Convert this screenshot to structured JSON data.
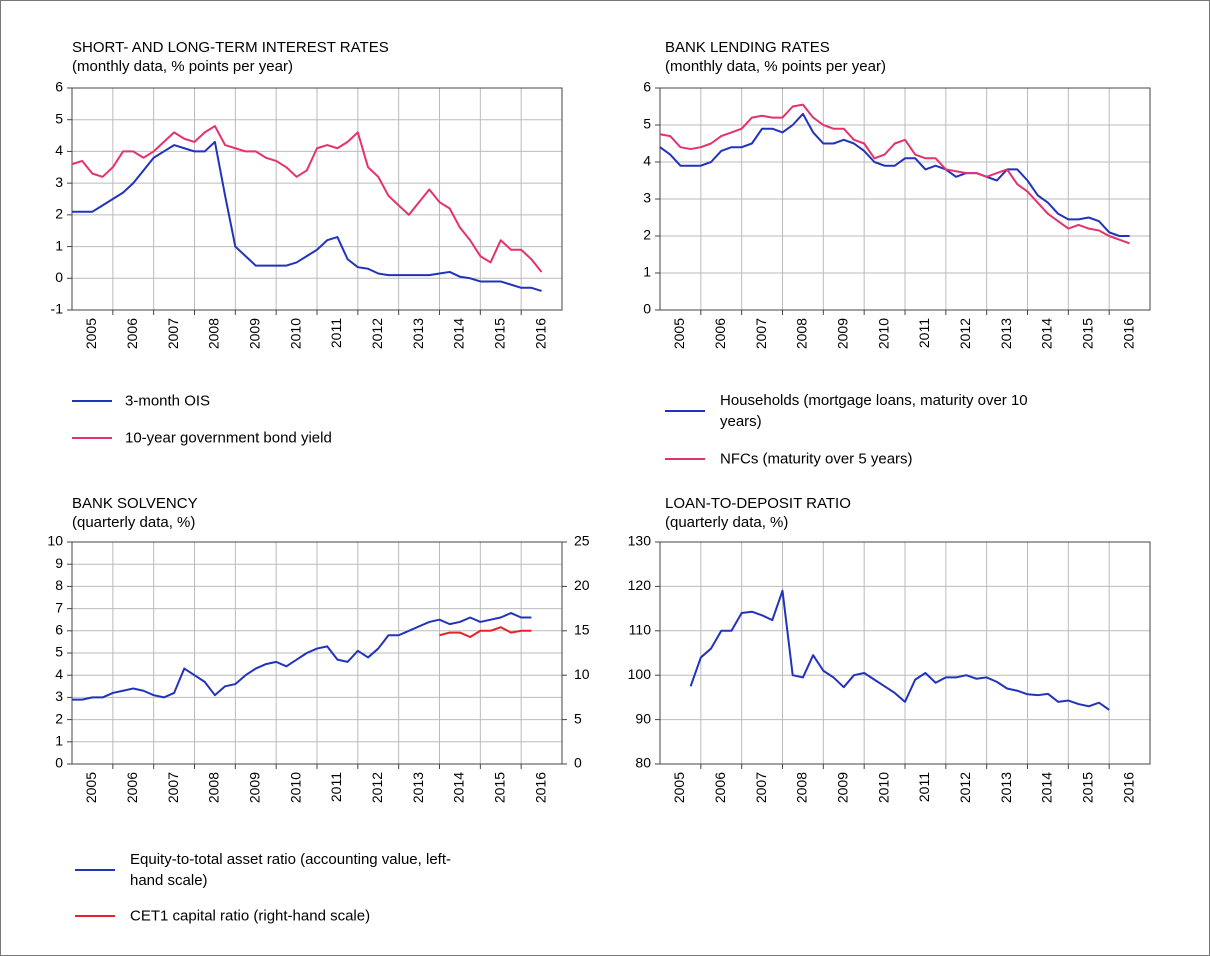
{
  "chart_data": [
    {
      "type": "line",
      "title": "SHORT- AND LONG-TERM INTEREST RATES",
      "subtitle": "(monthly data, % points per year)",
      "x": [
        2005,
        2005.25,
        2005.5,
        2005.75,
        2006,
        2006.25,
        2006.5,
        2006.75,
        2007,
        2007.25,
        2007.5,
        2007.75,
        2008,
        2008.25,
        2008.5,
        2008.75,
        2009,
        2009.25,
        2009.5,
        2009.75,
        2010,
        2010.25,
        2010.5,
        2010.75,
        2011,
        2011.25,
        2011.5,
        2011.75,
        2012,
        2012.25,
        2012.5,
        2012.75,
        2013,
        2013.25,
        2013.5,
        2013.75,
        2014,
        2014.25,
        2014.5,
        2014.75,
        2015,
        2015.25,
        2015.5,
        2015.75,
        2016,
        2016.25,
        2016.5
      ],
      "xlim": [
        2005,
        2017
      ],
      "xticks": [
        2006,
        2007,
        2008,
        2009,
        2010,
        2011,
        2012,
        2013,
        2014,
        2015,
        2016
      ],
      "categories": [
        "2005",
        "2006",
        "2007",
        "2008",
        "2009",
        "2010",
        "2011",
        "2012",
        "2013",
        "2014",
        "2015",
        "2016"
      ],
      "ylim": [
        -1,
        6
      ],
      "yticks": [
        -1,
        0,
        1,
        2,
        3,
        4,
        5,
        6
      ],
      "grid": true,
      "series": [
        {
          "name": "3-month OIS",
          "color": "#2233bb",
          "values": [
            2.1,
            2.1,
            2.1,
            2.3,
            2.5,
            2.7,
            3.0,
            3.4,
            3.8,
            4.0,
            4.2,
            4.1,
            4.0,
            4.0,
            4.3,
            2.6,
            1.0,
            0.7,
            0.4,
            0.4,
            0.4,
            0.4,
            0.5,
            0.7,
            0.9,
            1.2,
            1.3,
            0.6,
            0.35,
            0.3,
            0.15,
            0.1,
            0.1,
            0.1,
            0.1,
            0.1,
            0.15,
            0.2,
            0.05,
            0.0,
            -0.1,
            -0.1,
            -0.1,
            -0.2,
            -0.3,
            -0.3,
            -0.4
          ]
        },
        {
          "name": "10-year government bond yield",
          "color": "#e5316e",
          "values": [
            3.6,
            3.7,
            3.3,
            3.2,
            3.5,
            4.0,
            4.0,
            3.8,
            4.0,
            4.3,
            4.6,
            4.4,
            4.3,
            4.6,
            4.8,
            4.2,
            4.1,
            4.0,
            4.0,
            3.8,
            3.7,
            3.5,
            3.2,
            3.4,
            4.1,
            4.2,
            4.1,
            4.3,
            4.6,
            3.5,
            3.2,
            2.6,
            2.3,
            2.0,
            2.4,
            2.8,
            2.4,
            2.2,
            1.6,
            1.2,
            0.7,
            0.5,
            1.2,
            0.9,
            0.9,
            0.6,
            0.2
          ]
        }
      ]
    },
    {
      "type": "line",
      "title": "BANK LENDING RATES",
      "subtitle": "(monthly data, % points per year)",
      "x": [
        2005,
        2005.25,
        2005.5,
        2005.75,
        2006,
        2006.25,
        2006.5,
        2006.75,
        2007,
        2007.25,
        2007.5,
        2007.75,
        2008,
        2008.25,
        2008.5,
        2008.75,
        2009,
        2009.25,
        2009.5,
        2009.75,
        2010,
        2010.25,
        2010.5,
        2010.75,
        2011,
        2011.25,
        2011.5,
        2011.75,
        2012,
        2012.25,
        2012.5,
        2012.75,
        2013,
        2013.25,
        2013.5,
        2013.75,
        2014,
        2014.25,
        2014.5,
        2014.75,
        2015,
        2015.25,
        2015.5,
        2015.75,
        2016,
        2016.25,
        2016.5
      ],
      "xlim": [
        2005,
        2017
      ],
      "xticks": [
        2006,
        2007,
        2008,
        2009,
        2010,
        2011,
        2012,
        2013,
        2014,
        2015,
        2016
      ],
      "categories": [
        "2005",
        "2006",
        "2007",
        "2008",
        "2009",
        "2010",
        "2011",
        "2012",
        "2013",
        "2014",
        "2015",
        "2016"
      ],
      "ylim": [
        0,
        6
      ],
      "yticks": [
        0,
        1,
        2,
        3,
        4,
        5,
        6
      ],
      "grid": true,
      "series": [
        {
          "name": "Households (mortgage loans, maturity over 10 years)",
          "color": "#2233bb",
          "values": [
            4.4,
            4.2,
            3.9,
            3.9,
            3.9,
            4.0,
            4.3,
            4.4,
            4.4,
            4.5,
            4.9,
            4.9,
            4.8,
            5.0,
            5.3,
            4.8,
            4.5,
            4.5,
            4.6,
            4.5,
            4.3,
            4.0,
            3.9,
            3.9,
            4.1,
            4.1,
            3.8,
            3.9,
            3.8,
            3.6,
            3.7,
            3.7,
            3.6,
            3.5,
            3.8,
            3.8,
            3.5,
            3.1,
            2.9,
            2.6,
            2.45,
            2.45,
            2.5,
            2.4,
            2.1,
            2.0,
            2.0
          ]
        },
        {
          "name": "NFCs (maturity over 5 years)",
          "color": "#e5316e",
          "values": [
            4.75,
            4.7,
            4.4,
            4.35,
            4.4,
            4.5,
            4.7,
            4.8,
            4.9,
            5.2,
            5.25,
            5.2,
            5.2,
            5.5,
            5.55,
            5.2,
            5.0,
            4.9,
            4.9,
            4.6,
            4.5,
            4.1,
            4.2,
            4.5,
            4.6,
            4.2,
            4.1,
            4.1,
            3.8,
            3.75,
            3.7,
            3.7,
            3.6,
            3.7,
            3.8,
            3.4,
            3.2,
            2.9,
            2.6,
            2.4,
            2.2,
            2.3,
            2.2,
            2.15,
            2.0,
            1.9,
            1.8
          ]
        }
      ]
    },
    {
      "type": "line",
      "title": "BANK SOLVENCY",
      "subtitle": "(quarterly data, %)",
      "x": [
        2005,
        2005.25,
        2005.5,
        2005.75,
        2006,
        2006.25,
        2006.5,
        2006.75,
        2007,
        2007.25,
        2007.5,
        2007.75,
        2008,
        2008.25,
        2008.5,
        2008.75,
        2009,
        2009.25,
        2009.5,
        2009.75,
        2010,
        2010.25,
        2010.5,
        2010.75,
        2011,
        2011.25,
        2011.5,
        2011.75,
        2012,
        2012.25,
        2012.5,
        2012.75,
        2013,
        2013.25,
        2013.5,
        2013.75,
        2014,
        2014.25,
        2014.5,
        2014.75,
        2015,
        2015.25,
        2015.5,
        2015.75,
        2016,
        2016.25
      ],
      "xlim": [
        2005,
        2017
      ],
      "xticks": [
        2006,
        2007,
        2008,
        2009,
        2010,
        2011,
        2012,
        2013,
        2014,
        2015,
        2016
      ],
      "categories": [
        "2005",
        "2006",
        "2007",
        "2008",
        "2009",
        "2010",
        "2011",
        "2012",
        "2013",
        "2014",
        "2015",
        "2016"
      ],
      "ylim": [
        0,
        10
      ],
      "yticks": [
        0,
        1,
        2,
        3,
        4,
        5,
        6,
        7,
        8,
        9,
        10
      ],
      "y2lim": [
        0,
        25
      ],
      "y2ticks": [
        0,
        5,
        10,
        15,
        20,
        25
      ],
      "grid": true,
      "series": [
        {
          "name": "Equity-to-total asset ratio (accounting value, left-hand scale)",
          "color": "#2233bb",
          "values": [
            2.9,
            2.9,
            3.0,
            3.0,
            3.2,
            3.3,
            3.4,
            3.3,
            3.1,
            3.0,
            3.2,
            4.3,
            4.0,
            3.7,
            3.1,
            3.5,
            3.6,
            4.0,
            4.3,
            4.5,
            4.6,
            4.4,
            4.7,
            5.0,
            5.2,
            5.3,
            4.7,
            4.6,
            5.1,
            4.8,
            5.2,
            5.8,
            5.8,
            6.0,
            6.2,
            6.4,
            6.5,
            6.3,
            6.4,
            6.6,
            6.4,
            6.5,
            6.6,
            6.8,
            6.6,
            6.6
          ]
        },
        {
          "name": "CET1 capital ratio (right-hand scale)",
          "color": "#e8202a",
          "axis": "y2",
          "values": [
            null,
            null,
            null,
            null,
            null,
            null,
            null,
            null,
            null,
            null,
            null,
            null,
            null,
            null,
            null,
            null,
            null,
            null,
            null,
            null,
            null,
            null,
            null,
            null,
            null,
            null,
            null,
            null,
            null,
            null,
            null,
            null,
            null,
            null,
            null,
            null,
            14.5,
            14.8,
            14.8,
            14.3,
            15.0,
            15.0,
            15.4,
            14.8,
            15.0,
            15.0
          ]
        }
      ]
    },
    {
      "type": "line",
      "title": "LOAN-TO-DEPOSIT RATIO",
      "subtitle": "(quarterly data, %)",
      "x": [
        2005.75,
        2006,
        2006.25,
        2006.5,
        2006.75,
        2007,
        2007.25,
        2007.5,
        2007.75,
        2008,
        2008.25,
        2008.5,
        2008.75,
        2009,
        2009.25,
        2009.5,
        2009.75,
        2010,
        2010.25,
        2010.5,
        2010.75,
        2011,
        2011.25,
        2011.5,
        2011.75,
        2012,
        2012.25,
        2012.5,
        2012.75,
        2013,
        2013.25,
        2013.5,
        2013.75,
        2014,
        2014.25,
        2014.5,
        2014.75,
        2015,
        2015.25,
        2015.5,
        2015.75,
        2016
      ],
      "xlim": [
        2005,
        2017
      ],
      "xticks": [
        2006,
        2007,
        2008,
        2009,
        2010,
        2011,
        2012,
        2013,
        2014,
        2015,
        2016
      ],
      "categories": [
        "2005",
        "2006",
        "2007",
        "2008",
        "2009",
        "2010",
        "2011",
        "2012",
        "2013",
        "2014",
        "2015",
        "2016"
      ],
      "ylim": [
        80,
        130
      ],
      "yticks": [
        80,
        90,
        100,
        110,
        120,
        130
      ],
      "grid": true,
      "color": "#2233bb",
      "values": [
        97.5,
        104,
        106,
        110,
        110,
        114,
        114.3,
        113.5,
        112.4,
        119,
        100,
        99.5,
        104.5,
        101,
        99.5,
        97.3,
        100,
        100.5,
        99,
        97.5,
        96,
        94,
        99,
        100.5,
        98.3,
        99.5,
        99.5,
        100,
        99.2,
        99.5,
        98.5,
        97,
        96.5,
        95.7,
        95.5,
        95.8,
        94,
        94.3,
        93.5,
        93,
        93.8,
        92.2
      ]
    }
  ]
}
